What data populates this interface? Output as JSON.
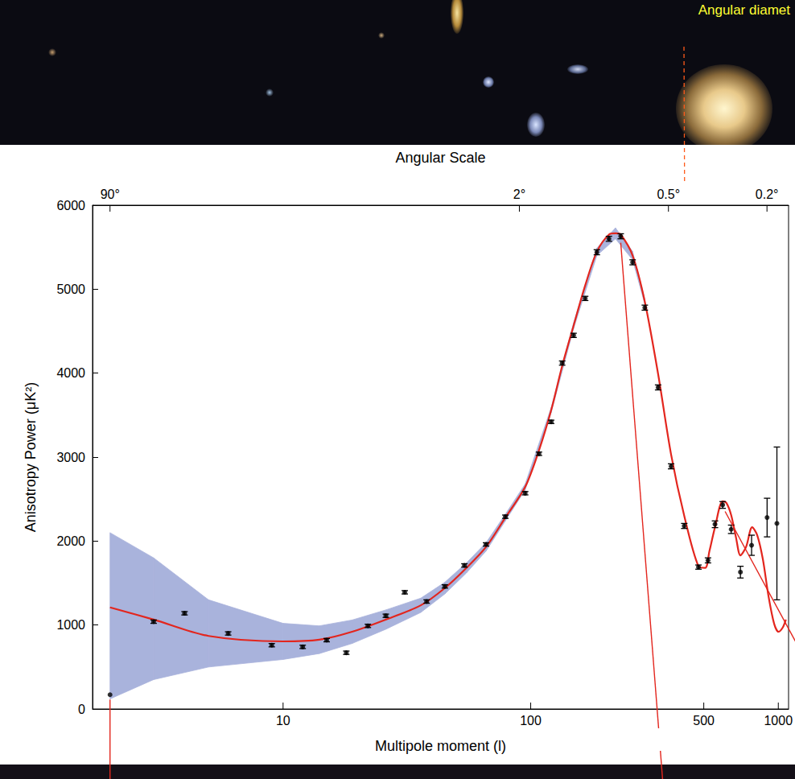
{
  "chart_data": {
    "type": "scatter",
    "annotations": [
      "Angular diamet"
    ],
    "x_label": "Multipole moment (l)",
    "x2_label": "Angular Scale",
    "y_label": "Anisotropy Power (μK²)",
    "log": "x",
    "grid": false,
    "xlim": [
      1.7,
      1100
    ],
    "xticks": [
      10,
      100,
      500,
      1000
    ],
    "x2ticks": [
      {
        "value": 2,
        "label": "90°"
      },
      {
        "value": 90,
        "label": "2°"
      },
      {
        "value": 360,
        "label": "0.5°"
      },
      {
        "value": 900,
        "label": "0.2°"
      }
    ],
    "ylim": [
      0,
      6000
    ],
    "yticks": [
      0,
      1000,
      2000,
      3000,
      4000,
      5000,
      6000
    ],
    "series": [
      {
        "type": "band",
        "color": "#a9b3dc",
        "x": [
          2,
          3,
          5,
          10,
          14,
          19,
          26,
          36,
          45,
          55,
          66,
          79,
          95,
          121,
          149,
          185,
          220,
          258,
          289
        ],
        "lower": [
          120,
          350,
          500,
          590,
          660,
          780,
          950,
          1150,
          1370,
          1620,
          1880,
          2240,
          2610,
          3530,
          4530,
          5400,
          5600,
          5350,
          4820
        ],
        "upper": [
          2100,
          1800,
          1300,
          1020,
          990,
          1060,
          1180,
          1320,
          1510,
          1740,
          1980,
          2320,
          2680,
          3590,
          4600,
          5490,
          5730,
          5450,
          4880
        ]
      },
      {
        "type": "line",
        "color": "#e3261e",
        "line_style": "solid",
        "x": [
          2,
          3,
          5,
          10,
          14,
          19,
          26,
          36,
          45,
          55,
          66,
          79,
          95,
          108,
          121,
          134,
          149,
          166,
          185,
          207,
          220,
          231,
          258,
          289,
          327,
          369,
          417,
          476,
          507,
          527,
          555,
          596,
          617,
          645,
          675,
          703,
          741,
          784,
          822,
          866,
          912,
          962,
          1002,
          1042,
          1073
        ],
        "values": [
          1210,
          1065,
          870,
          805,
          825,
          920,
          1065,
          1235,
          1440,
          1680,
          1930,
          2280,
          2645,
          3080,
          3560,
          4085,
          4565,
          5045,
          5445,
          5650,
          5665,
          5650,
          5400,
          4850,
          3990,
          3030,
          2300,
          1700,
          1680,
          1880,
          2165,
          2475,
          2455,
          2310,
          2040,
          1830,
          1930,
          2165,
          2070,
          1785,
          1350,
          1015,
          920,
          970,
          1065
        ]
      },
      {
        "type": "scatter",
        "color": "#000000",
        "marker": "circle",
        "x": [
          2,
          3,
          4,
          6,
          9,
          12,
          15,
          18,
          22,
          26,
          31,
          38,
          45,
          54,
          66,
          79,
          95,
          108,
          121,
          134,
          149,
          166,
          185,
          207,
          231,
          258,
          289,
          327,
          369,
          417,
          476,
          520,
          555,
          596,
          645,
          703,
          780,
          901,
          987
        ],
        "values": [
          170,
          1040,
          1140,
          900,
          760,
          740,
          820,
          670,
          990,
          1110,
          1390,
          1280,
          1460,
          1710,
          1960,
          2290,
          2570,
          3040,
          3420,
          4120,
          4450,
          4890,
          5440,
          5600,
          5630,
          5320,
          4780,
          3830,
          2890,
          2180,
          1690,
          1770,
          2200,
          2430,
          2140,
          1630,
          1950,
          2280,
          2210
        ],
        "errors": [
          0,
          20,
          20,
          20,
          20,
          20,
          20,
          20,
          20,
          20,
          20,
          20,
          20,
          20,
          20,
          20,
          20,
          20,
          20,
          25,
          25,
          25,
          30,
          30,
          30,
          30,
          30,
          30,
          30,
          30,
          25,
          30,
          40,
          40,
          50,
          70,
          120,
          230,
          910
        ]
      }
    ]
  }
}
